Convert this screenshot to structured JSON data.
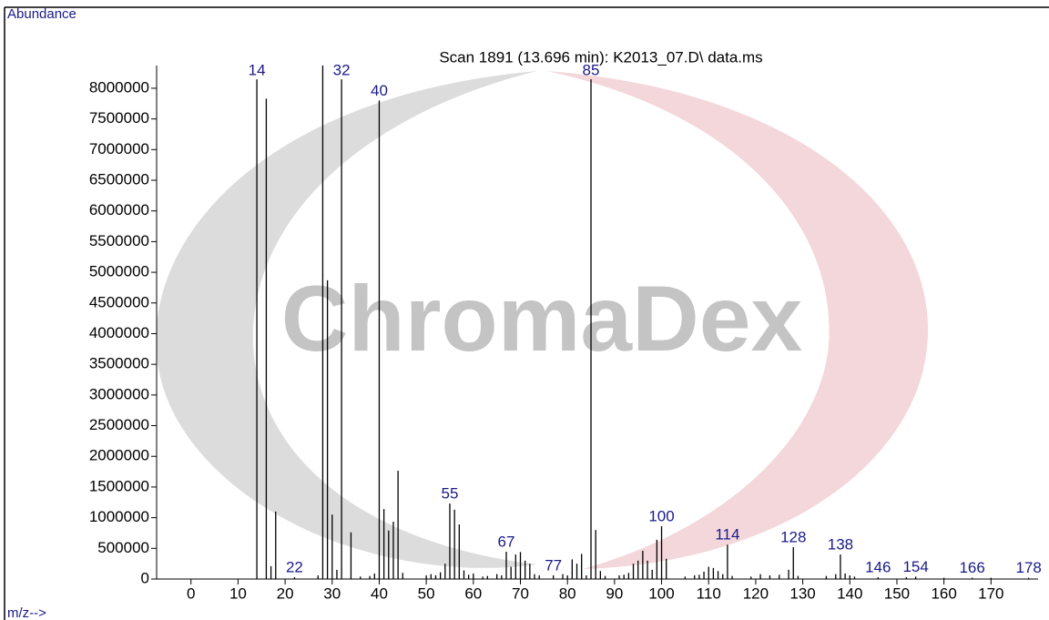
{
  "chart_data": {
    "type": "stick",
    "title": "Scan 1891 (13.696 min): K2013_07.D\\ data.ms",
    "y_label": "Abundance",
    "x_label": "m/z-->",
    "watermark": "ChromaDex",
    "xlim": [
      -7.3,
      180
    ],
    "ylim": [
      0,
      8370000
    ],
    "xticks": [
      0,
      10,
      20,
      30,
      40,
      50,
      60,
      70,
      80,
      90,
      100,
      110,
      120,
      130,
      140,
      150,
      160,
      170
    ],
    "yticks": [
      0,
      500000,
      1000000,
      1500000,
      2000000,
      2500000,
      3000000,
      3500000,
      4000000,
      4500000,
      5000000,
      5500000,
      6000000,
      6500000,
      7000000,
      7500000,
      8000000
    ],
    "series": [
      {
        "color": "#000000",
        "label_color": "#1a1a8a",
        "labels": true,
        "x": [
          14,
          22,
          32,
          40,
          55,
          67,
          77,
          85,
          100,
          114,
          128,
          138,
          146,
          154,
          166,
          178
        ],
        "values": [
          8145000,
          30000,
          8145000,
          7800000,
          1230000,
          445000,
          60000,
          8145000,
          860000,
          560000,
          520000,
          400000,
          30000,
          40000,
          20000,
          20000
        ]
      },
      {
        "color": "#000000",
        "labels": false,
        "x": [
          16,
          17,
          18,
          27,
          28,
          29,
          30,
          31,
          34,
          36,
          38,
          39,
          41,
          42,
          43,
          44,
          45,
          50,
          51,
          52,
          53,
          54,
          56,
          57,
          58,
          59,
          60,
          62,
          63,
          65,
          66,
          68,
          69,
          70,
          71,
          72,
          73,
          74,
          79,
          80,
          81,
          82,
          83,
          84,
          86,
          87,
          88,
          91,
          92,
          93,
          94,
          95,
          96,
          97,
          98,
          99,
          101,
          105,
          107,
          108,
          109,
          110,
          111,
          112,
          113,
          115,
          119,
          121,
          123,
          125,
          127,
          129,
          135,
          137,
          139,
          140,
          141,
          152,
          160,
          170
        ],
        "values": [
          7830000,
          210000,
          1100000,
          60000,
          8370000,
          4870000,
          1050000,
          150000,
          760000,
          40000,
          50000,
          90000,
          1140000,
          790000,
          935000,
          1765000,
          100000,
          60000,
          80000,
          60000,
          110000,
          250000,
          1130000,
          890000,
          140000,
          70000,
          90000,
          40000,
          50000,
          80000,
          60000,
          200000,
          400000,
          440000,
          300000,
          250000,
          80000,
          60000,
          80000,
          60000,
          320000,
          250000,
          410000,
          60000,
          800000,
          130000,
          50000,
          60000,
          70000,
          100000,
          250000,
          300000,
          460000,
          300000,
          150000,
          640000,
          330000,
          40000,
          60000,
          70000,
          120000,
          200000,
          180000,
          130000,
          80000,
          50000,
          40000,
          80000,
          60000,
          70000,
          150000,
          50000,
          50000,
          80000,
          90000,
          60000,
          40000,
          30000,
          20000,
          20000
        ]
      }
    ]
  }
}
